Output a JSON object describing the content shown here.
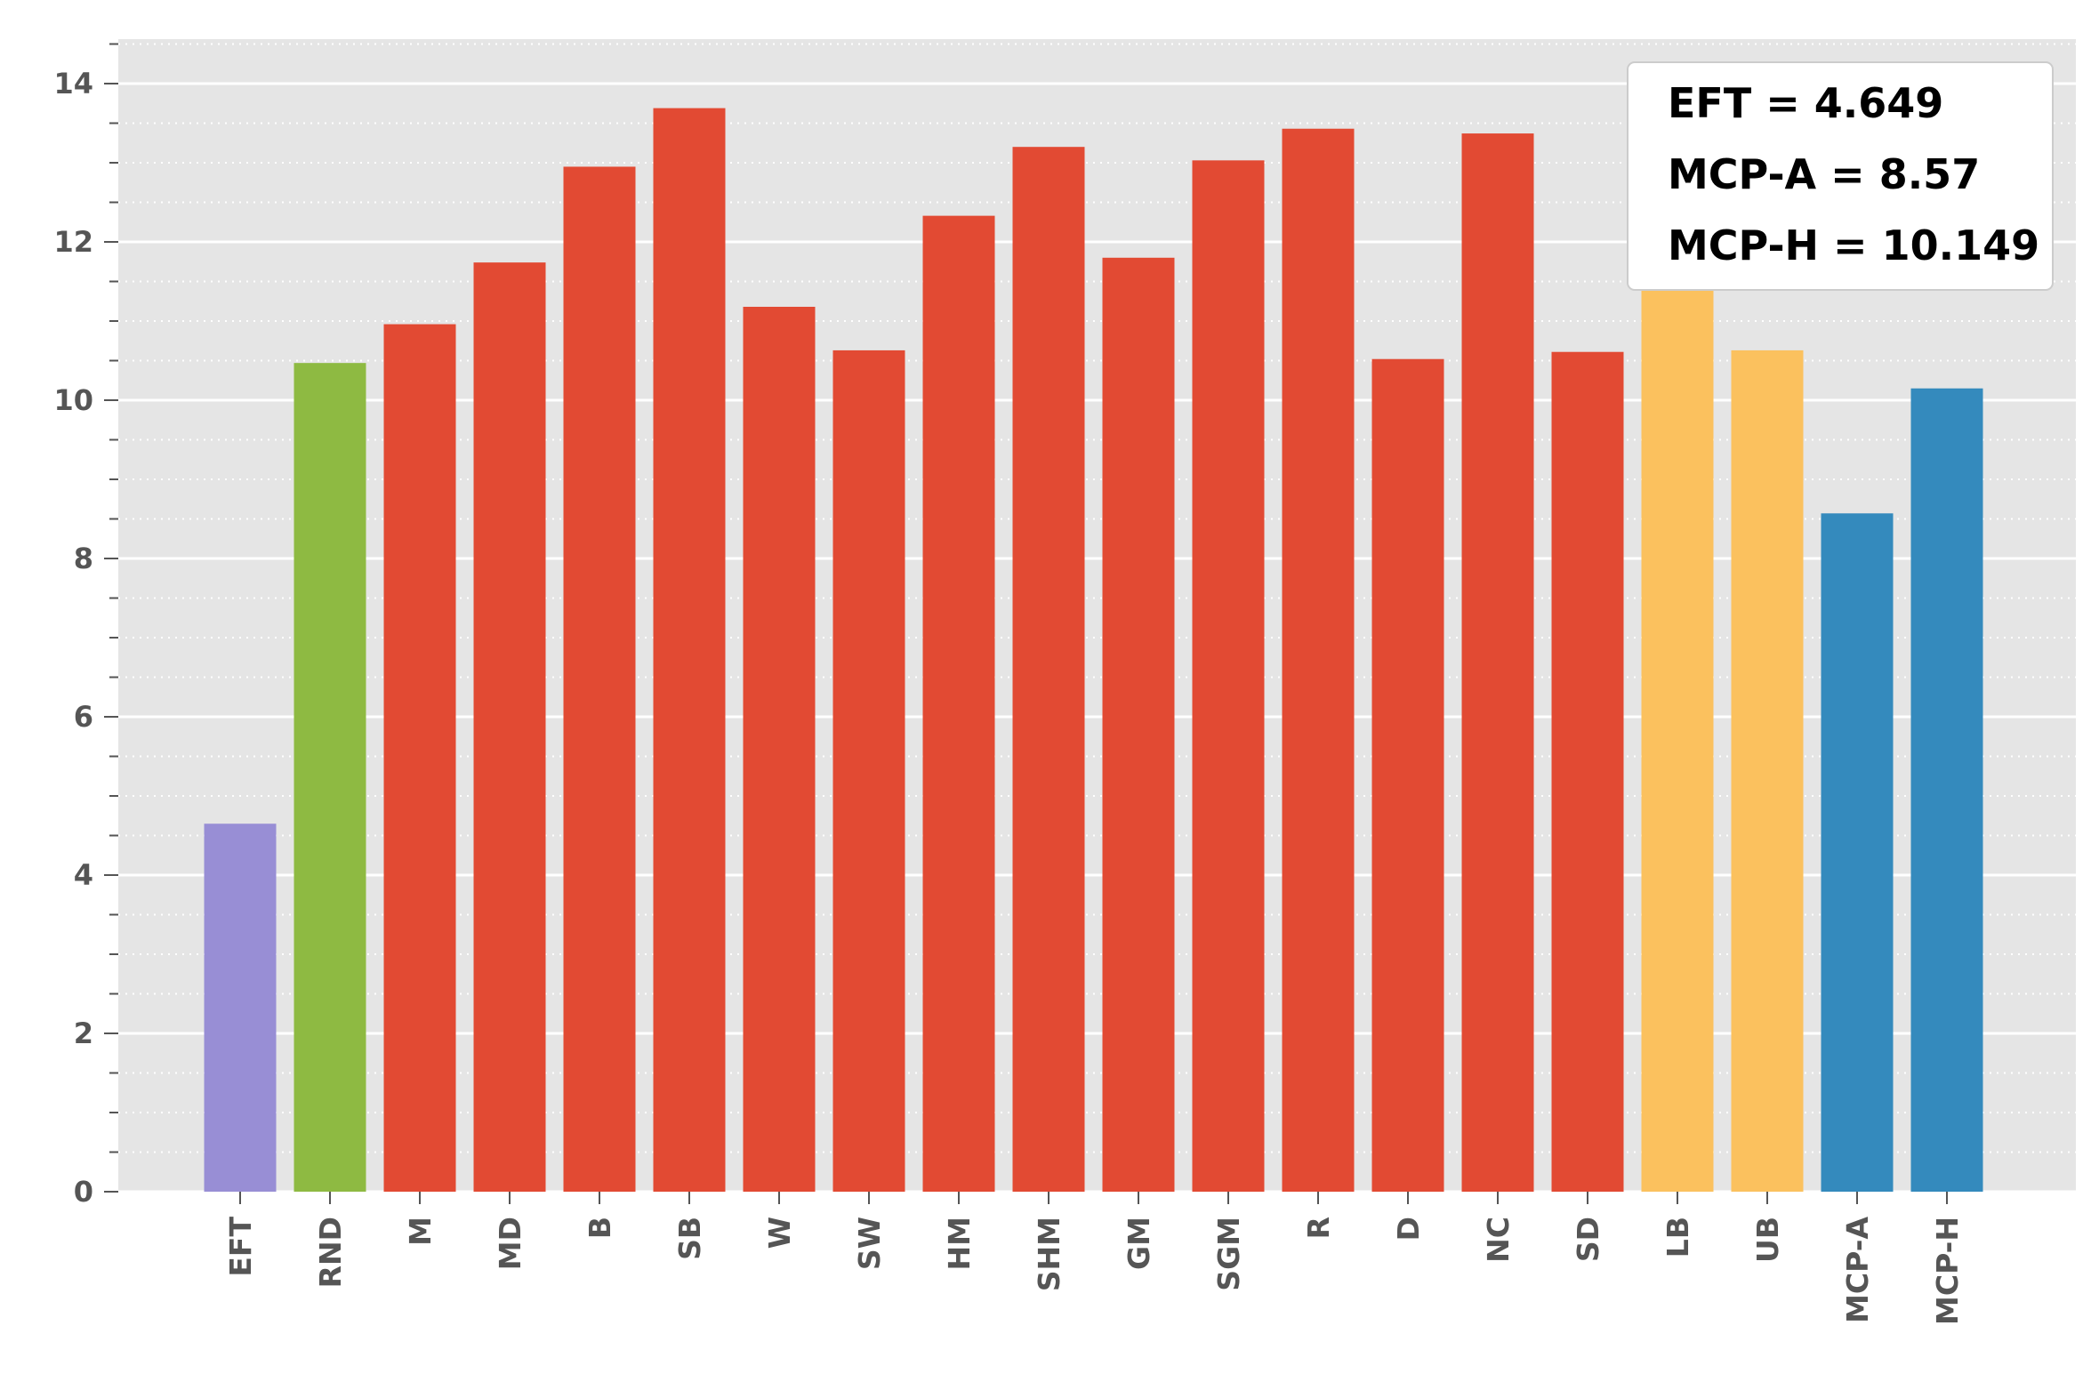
{
  "chart_data": {
    "type": "bar",
    "categories": [
      "EFT",
      "RND",
      "M",
      "MD",
      "B",
      "SB",
      "W",
      "SW",
      "HM",
      "SHM",
      "GM",
      "SGM",
      "R",
      "D",
      "NC",
      "SD",
      "LB",
      "UB",
      "MCP-A",
      "MCP-H"
    ],
    "values": [
      4.649,
      10.47,
      10.96,
      11.74,
      12.95,
      13.69,
      11.18,
      10.63,
      12.33,
      13.2,
      11.8,
      13.03,
      13.43,
      10.52,
      13.37,
      10.61,
      11.4,
      10.63,
      8.57,
      10.149
    ],
    "colors": [
      "#988ed5",
      "#8eba42",
      "#e24a33",
      "#e24a33",
      "#e24a33",
      "#e24a33",
      "#e24a33",
      "#e24a33",
      "#e24a33",
      "#e24a33",
      "#e24a33",
      "#e24a33",
      "#e24a33",
      "#e24a33",
      "#e24a33",
      "#e24a33",
      "#fbc15e",
      "#fbc15e",
      "#348abd",
      "#348abd"
    ],
    "yticks": [
      0,
      2,
      4,
      6,
      8,
      10,
      12,
      14
    ],
    "ylim": [
      0,
      14.5
    ],
    "title": "",
    "xlabel": "",
    "ylabel": "",
    "grid": {
      "major": true,
      "minor": true
    },
    "background_color": "#e5e5e5",
    "annotation": {
      "placement": "top-right",
      "lines": [
        "EFT = 4.649",
        "MCP-A = 8.57",
        "MCP-H = 10.149"
      ]
    }
  }
}
